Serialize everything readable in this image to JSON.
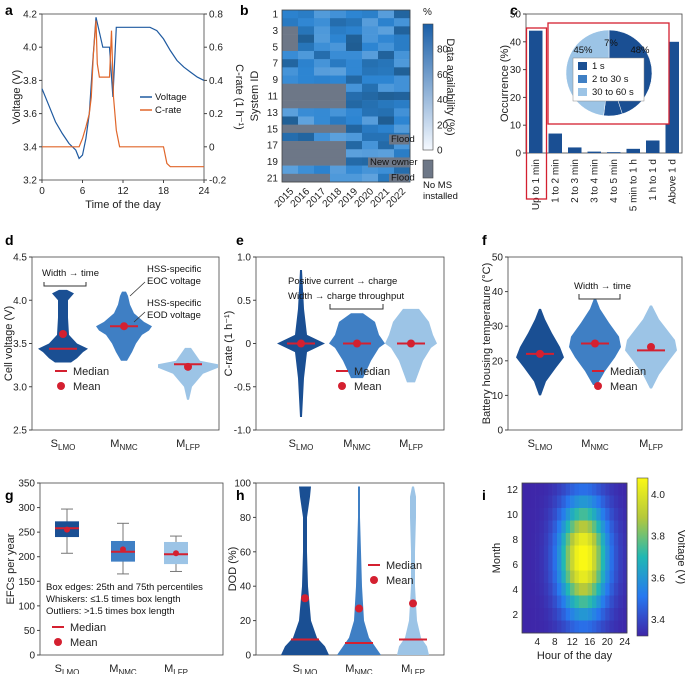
{
  "colors": {
    "dark_blue": "#1f5aa0",
    "mid_blue": "#3f7fc4",
    "light_blue": "#9cc4e6",
    "orange": "#e0662a",
    "red": "#d42030",
    "grey": "#6d7787"
  },
  "panels": {
    "a": {
      "label": "a",
      "xlabel": "Time of the day",
      "ylabel_left": "Voltage (V)",
      "ylabel_right": "C-rate (1 h⁻¹)",
      "xticks": [
        "0",
        "6",
        "12",
        "18",
        "24"
      ],
      "yticks_left": [
        "3.2",
        "3.4",
        "3.6",
        "3.8",
        "4.0",
        "4.2"
      ],
      "yticks_right": [
        "-0.2",
        "0",
        "0.2",
        "0.4",
        "0.6",
        "0.8"
      ],
      "legend": [
        "Voltage",
        "C-rate"
      ]
    },
    "b": {
      "label": "b",
      "ylabel": "System ID",
      "cbar_label": "Data availability (%)",
      "cbar_unit": "%",
      "yticks": [
        "1",
        "3",
        "5",
        "7",
        "9",
        "11",
        "13",
        "15",
        "17",
        "19",
        "21"
      ],
      "xticks": [
        "2015",
        "2016",
        "2017",
        "2018",
        "2019",
        "2020",
        "2021",
        "2022"
      ],
      "cbar_ticks": [
        "0",
        "20",
        "40",
        "60",
        "80"
      ],
      "annotations": [
        "Flood",
        "New owner",
        "Flood"
      ],
      "no_ms_label": "No MS installed"
    },
    "c": {
      "label": "c",
      "ylabel": "Occurrence (%)",
      "yticks": [
        "0",
        "10",
        "20",
        "30",
        "40",
        "50"
      ],
      "categories": [
        "Up to 1 min",
        "1 to 2 min",
        "2 to 3 min",
        "3 to 4 min",
        "4 to 5 min",
        "5 min to 1 h",
        "1 h to 1 d",
        "Above 1 d"
      ],
      "pie_labels": [
        "45%",
        "7%",
        "48%"
      ],
      "pie_legend": [
        "1 s",
        "2 to 30 s",
        "30 to 60 s"
      ]
    },
    "d": {
      "label": "d",
      "ylabel": "Cell voltage (V)",
      "yticks": [
        "2.5",
        "3.0",
        "3.5",
        "4.0",
        "4.5"
      ],
      "annotations": [
        "Width → time",
        "HSS-specific",
        "EOC voltage",
        "HSS-specific",
        "EOD voltage"
      ],
      "legend": [
        "Median",
        "Mean"
      ]
    },
    "e": {
      "label": "e",
      "ylabel": "C-rate (1 h⁻¹)",
      "yticks": [
        "-1.0",
        "-0.5",
        "0",
        "0.5",
        "1.0"
      ],
      "annotations": [
        "Positive current → charge",
        "Width → charge throughput"
      ],
      "legend": [
        "Median",
        "Mean"
      ]
    },
    "f": {
      "label": "f",
      "ylabel": "Battery housing temperature (°C)",
      "yticks": [
        "0",
        "10",
        "20",
        "30",
        "40",
        "50"
      ],
      "annotations": [
        "Width → time"
      ],
      "legend": [
        "Median",
        "Mean"
      ]
    },
    "g": {
      "label": "g",
      "ylabel": "EFCs per year",
      "yticks": [
        "0",
        "50",
        "100",
        "150",
        "200",
        "250",
        "300",
        "350"
      ],
      "notes": [
        "Box edges: 25th and 75th percentiles",
        "Whiskers: ≤1.5 times box length",
        "Outliers: >1.5 times box length"
      ],
      "legend": [
        "Median",
        "Mean"
      ]
    },
    "h": {
      "label": "h",
      "ylabel": "DOD (%)",
      "yticks": [
        "0",
        "20",
        "40",
        "60",
        "80",
        "100"
      ],
      "legend": [
        "Median",
        "Mean"
      ]
    },
    "i": {
      "label": "i",
      "ylabel": "Month",
      "xlabel": "Hour of the day",
      "cbar_label": "Voltage (V)",
      "yticks": [
        "2",
        "4",
        "6",
        "8",
        "10",
        "12"
      ],
      "xticks": [
        "4",
        "8",
        "12",
        "16",
        "20",
        "24"
      ],
      "cbar_ticks": [
        "3.4",
        "3.6",
        "3.8",
        "4.0"
      ]
    }
  },
  "groups": [
    {
      "main": "S",
      "sub": "LMO"
    },
    {
      "main": "M",
      "sub": "NMC"
    },
    {
      "main": "M",
      "sub": "LFP"
    }
  ],
  "chart_data": [
    {
      "id": "a",
      "type": "line",
      "title": "",
      "xlabel": "Time of the day",
      "ylabel": "Voltage (V)",
      "xlim": [
        0,
        24
      ],
      "ylim": [
        3.2,
        4.2
      ],
      "series": [
        {
          "name": "Voltage",
          "x": [
            0,
            1,
            2,
            3,
            4,
            5,
            5.5,
            6,
            6.5,
            7,
            7.5,
            8,
            9,
            10,
            10.5,
            11,
            12,
            14,
            16,
            17,
            18,
            19,
            20,
            21,
            22,
            23,
            24
          ],
          "values": [
            3.75,
            3.65,
            3.55,
            3.48,
            3.42,
            3.38,
            3.33,
            3.35,
            3.45,
            3.6,
            3.9,
            4.18,
            4.0,
            4.0,
            3.7,
            4.12,
            4.12,
            4.12,
            4.12,
            4.1,
            4.05,
            3.98,
            3.92,
            3.88,
            3.85,
            3.82,
            3.8
          ]
        },
        {
          "name": "C-rate",
          "x": [
            0,
            5.5,
            6,
            6.5,
            7,
            7.3,
            7.6,
            8,
            8.2,
            8.5,
            9,
            9.5,
            10,
            10.3,
            10.6,
            11,
            11.5,
            18,
            18.5,
            19,
            20,
            24
          ],
          "values": [
            0.0,
            0.0,
            0.05,
            0.12,
            0.2,
            0.3,
            0.55,
            0.76,
            0.5,
            0.42,
            0.42,
            0.42,
            0.42,
            0.7,
            0.3,
            0.1,
            0.0,
            0.0,
            -0.1,
            -0.12,
            -0.12,
            -0.12
          ]
        }
      ]
    },
    {
      "id": "c",
      "type": "bar",
      "title": "",
      "ylabel": "Occurrence (%)",
      "ylim": [
        0,
        50
      ],
      "categories": [
        "Up to 1 min",
        "1 to 2 min",
        "2 to 3 min",
        "3 to 4 min",
        "4 to 5 min",
        "5 min to 1 h",
        "1 h to 1 d",
        "Above 1 d"
      ],
      "values": [
        44,
        7,
        2,
        0.5,
        0.3,
        1.5,
        4.5,
        40
      ],
      "inset_pie": {
        "labels": [
          "1 s",
          "2 to 30 s",
          "30 to 60 s"
        ],
        "values": [
          45,
          7,
          48
        ]
      }
    },
    {
      "id": "g",
      "type": "box",
      "ylabel": "EFCs per year",
      "ylim": [
        0,
        350
      ],
      "series": [
        {
          "name": "S LMO",
          "q1": 240,
          "median": 258,
          "q3": 272,
          "whisker_low": 207,
          "whisker_high": 297,
          "mean": 255
        },
        {
          "name": "M NMC",
          "q1": 190,
          "median": 210,
          "q3": 232,
          "whisker_low": 165,
          "whisker_high": 268,
          "mean": 215
        },
        {
          "name": "M LFP",
          "q1": 185,
          "median": 205,
          "q3": 230,
          "whisker_low": 170,
          "whisker_high": 242,
          "mean": 207
        }
      ]
    },
    {
      "id": "d",
      "type": "violin",
      "ylabel": "Cell voltage (V)",
      "ylim": [
        2.5,
        4.5
      ],
      "medians": [
        3.44,
        3.7,
        3.26
      ],
      "means": [
        3.61,
        3.7,
        3.23
      ]
    },
    {
      "id": "e",
      "type": "violin",
      "ylabel": "C-rate (1 h⁻¹)",
      "ylim": [
        -1,
        1
      ],
      "medians": [
        0.0,
        0.0,
        0.0
      ],
      "means": [
        0.0,
        0.0,
        0.0
      ]
    },
    {
      "id": "f",
      "type": "violin",
      "ylabel": "Battery housing temperature (°C)",
      "ylim": [
        0,
        50
      ],
      "medians": [
        22,
        25,
        23
      ],
      "means": [
        22,
        25,
        24
      ]
    },
    {
      "id": "h",
      "type": "violin",
      "ylabel": "DOD (%)",
      "ylim": [
        0,
        100
      ],
      "medians": [
        9,
        7,
        9
      ],
      "means": [
        33,
        27,
        30
      ]
    }
  ]
}
